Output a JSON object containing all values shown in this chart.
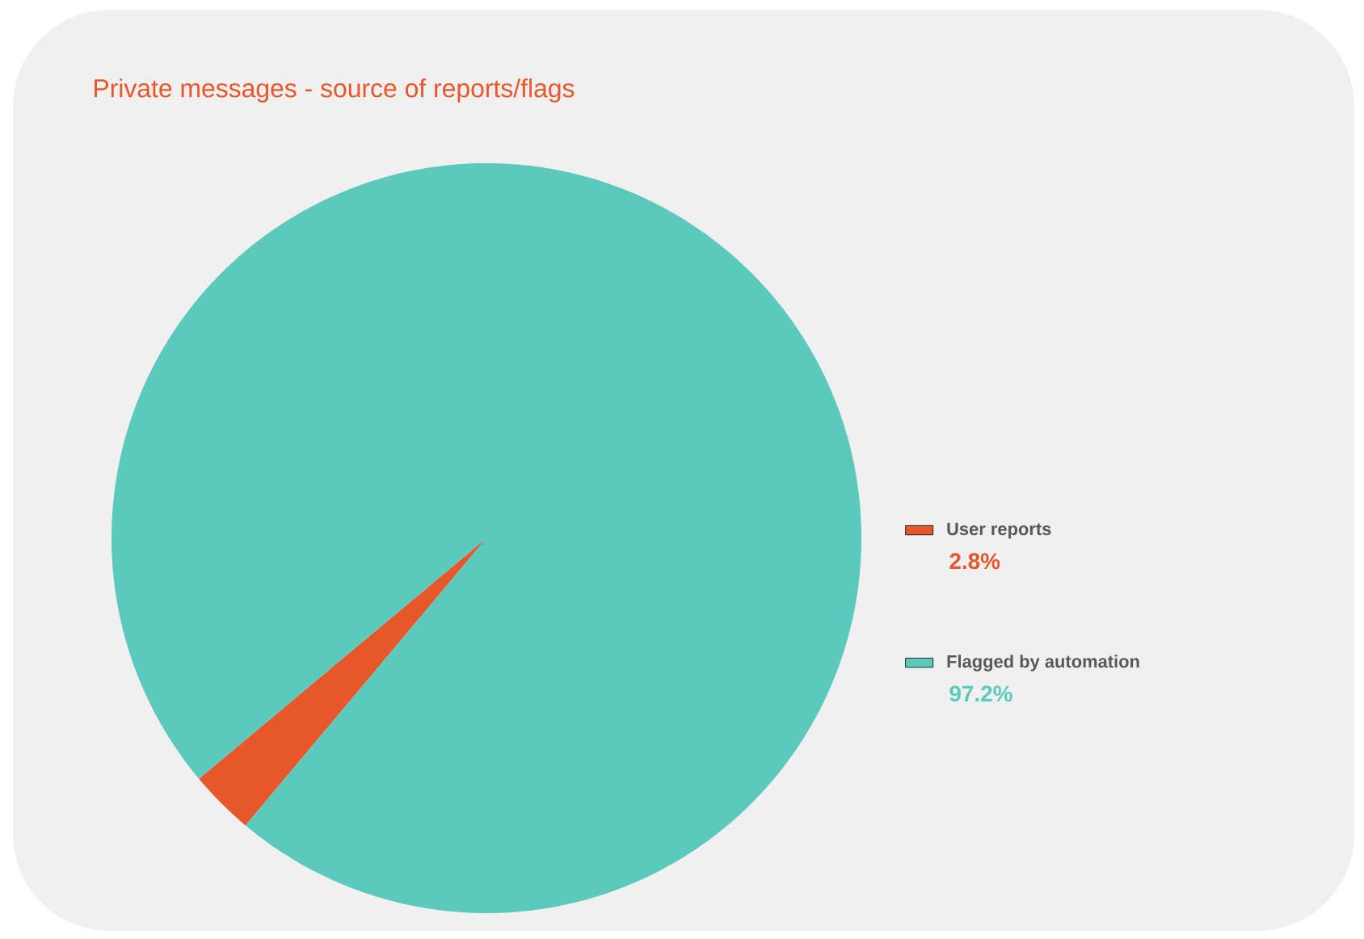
{
  "chart_data": {
    "type": "pie",
    "title": "Private messages - source of reports/flags",
    "categories": [
      "User reports",
      "Flagged by automation"
    ],
    "values": [
      2.8,
      97.2
    ],
    "colors": [
      "#e8572a",
      "#5cc9bd"
    ],
    "value_labels": [
      "2.8%",
      "97.2%"
    ],
    "legend": "right"
  }
}
